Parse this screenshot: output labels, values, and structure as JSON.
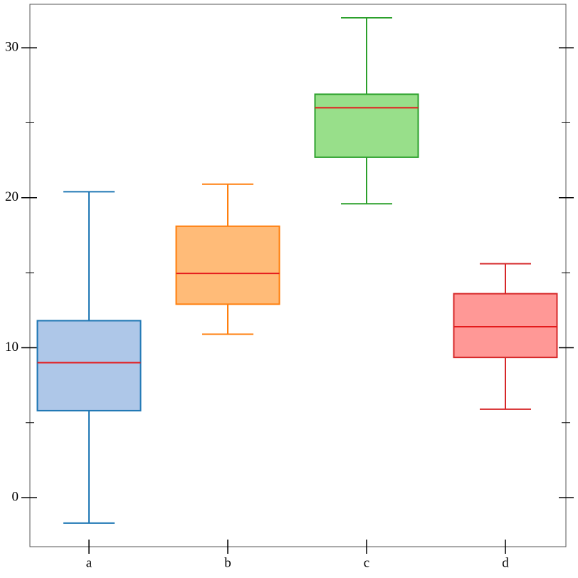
{
  "chart_data": {
    "type": "box",
    "categories": [
      "a",
      "b",
      "c",
      "d"
    ],
    "boxes": [
      {
        "whislo": -1.7,
        "q1": 5.8,
        "med": 9.0,
        "q3": 11.8,
        "whishi": 20.4
      },
      {
        "whislo": 10.9,
        "q1": 12.9,
        "med": 14.95,
        "q3": 18.1,
        "whishi": 20.9
      },
      {
        "whislo": 19.6,
        "q1": 22.7,
        "med": 26.0,
        "q3": 26.9,
        "whishi": 32.0
      },
      {
        "whislo": 5.9,
        "q1": 9.35,
        "med": 11.4,
        "q3": 13.6,
        "whishi": 15.6
      }
    ],
    "fill_colors": [
      "#aec7e8",
      "#ffbb78",
      "#98df8a",
      "#ff9896"
    ],
    "line_colors": [
      "#1f77b4",
      "#ff7f0e",
      "#2ca02c",
      "#d62728"
    ],
    "median_color": "#e41a1c",
    "ylim": [
      -3.27,
      32.9
    ],
    "yticks": [
      0,
      10,
      20,
      30
    ],
    "yminorticks": [
      5,
      15,
      25
    ]
  }
}
